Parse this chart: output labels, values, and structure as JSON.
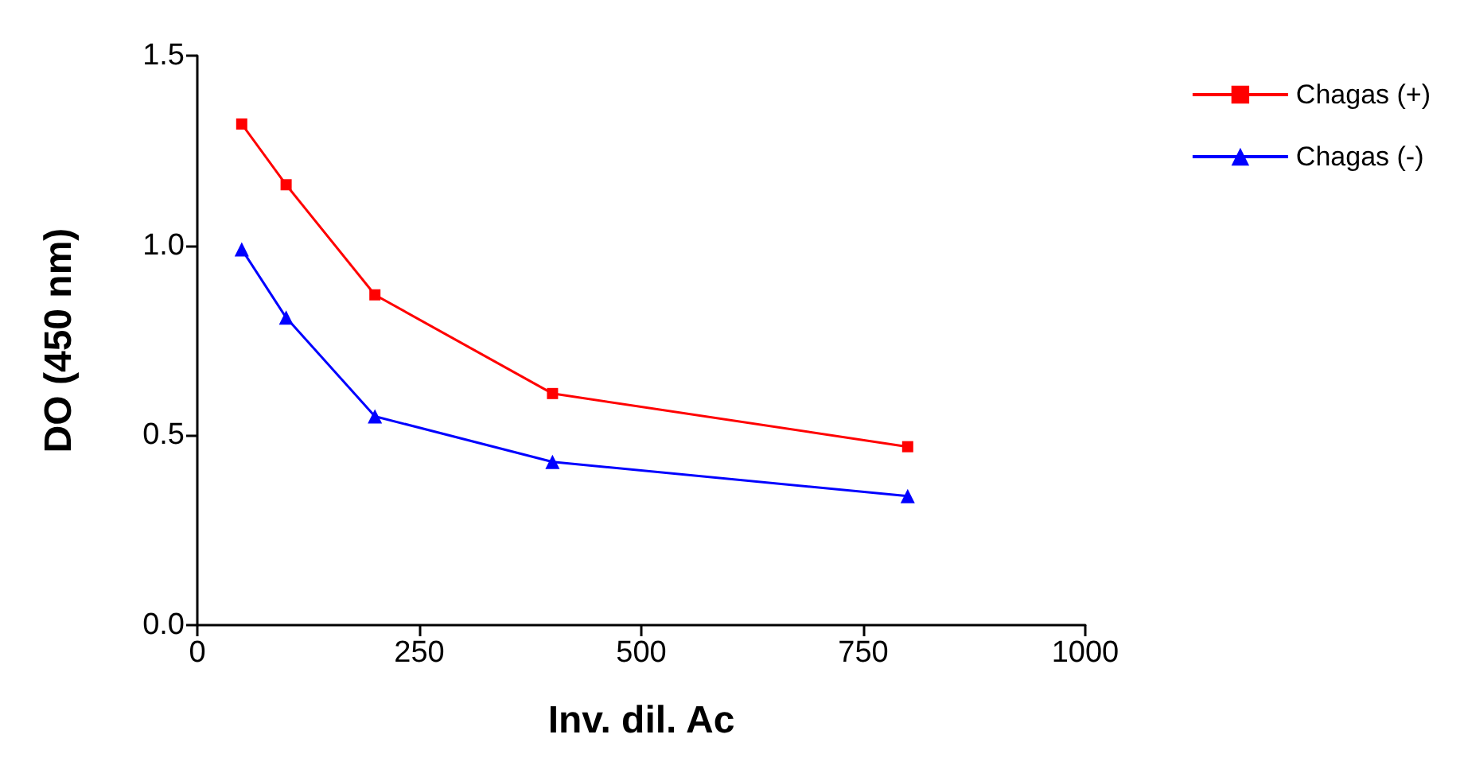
{
  "chart_data": {
    "type": "line",
    "xlabel": "Inv. dil. Ac",
    "ylabel": "DO (450 nm)",
    "x": [
      50,
      100,
      200,
      400,
      800
    ],
    "series": [
      {
        "name": "Chagas (+)",
        "color": "#ff0000",
        "marker": "square",
        "values": [
          1.32,
          1.16,
          0.87,
          0.61,
          0.47
        ]
      },
      {
        "name": "Chagas (-)",
        "color": "#0000ff",
        "marker": "triangle",
        "values": [
          0.99,
          0.81,
          0.55,
          0.43,
          0.34
        ]
      }
    ],
    "xlim": [
      0,
      1000
    ],
    "xticks": [
      0,
      250,
      500,
      750,
      1000
    ],
    "ylim": [
      0,
      1.5
    ],
    "yticks": [
      {
        "value": 0,
        "label": "0.0"
      },
      {
        "value": 0.5,
        "label": "0.5"
      },
      {
        "value": 1,
        "label": "1.0"
      },
      {
        "value": 1.5,
        "label": "1.5"
      }
    ],
    "grid": false,
    "legend": "top right"
  }
}
